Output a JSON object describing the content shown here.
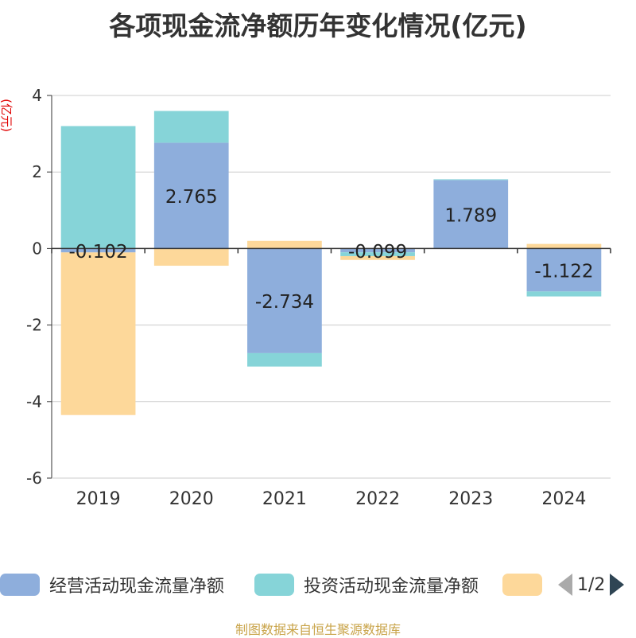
{
  "title": "各项现金流净额历年变化情况(亿元)",
  "footer": "制图数据来自恒生聚源数据库",
  "legend": {
    "items": [
      {
        "label": "经营活动现金流量净额",
        "color": "#8eaedc"
      },
      {
        "label": "投资活动现金流量净额",
        "color": "#86d4d8"
      },
      {
        "label": "",
        "color": "#fdd89a"
      }
    ],
    "page": "1/2"
  },
  "chart_data": {
    "type": "bar",
    "stacked": true,
    "ylabel": "(亿元)",
    "ylim": [
      -6,
      4
    ],
    "yticks": [
      4,
      2,
      0,
      -2,
      -4,
      -6
    ],
    "grid": true,
    "legend_position": "bottom",
    "categories": [
      "2019",
      "2020",
      "2021",
      "2022",
      "2023",
      "2024"
    ],
    "series": [
      {
        "name": "经营活动现金流量净额",
        "color": "#8eaedc",
        "values": [
          -0.102,
          2.765,
          -2.734,
          -0.099,
          1.789,
          -1.122
        ],
        "labels": [
          "-0.102",
          "2.765",
          "-2.734",
          "-0.099",
          "1.789",
          "-1.122"
        ]
      },
      {
        "name": "投资活动现金流量净额",
        "color": "#86d4d8",
        "values": [
          3.2,
          0.83,
          -0.35,
          -0.1,
          0.02,
          -0.13
        ]
      },
      {
        "color": "#fdd89a",
        "values": [
          -4.25,
          -0.45,
          0.2,
          -0.1,
          0.0,
          0.12
        ]
      }
    ]
  }
}
